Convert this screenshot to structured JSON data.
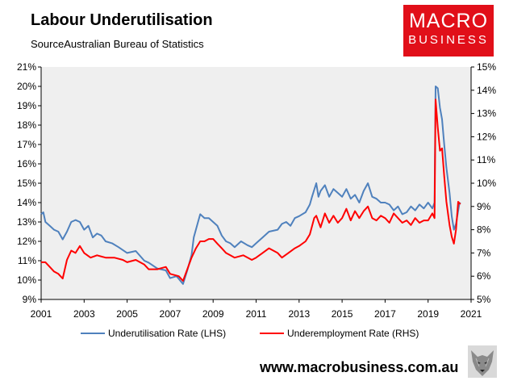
{
  "header": {
    "title": "Labour Underutilisation",
    "source": "SourceAustralian Bureau of Statistics"
  },
  "logo": {
    "line1": "MACRO",
    "line2": "BUSINESS",
    "color": "#e10f19"
  },
  "footer": {
    "site": "www.macrobusiness.com.au",
    "mascot_icon": "wolf-icon"
  },
  "chart_data": {
    "type": "line",
    "grid": false,
    "plot_background": "#efefef",
    "legend_position": "bottom",
    "x_axis": {
      "range": [
        2001,
        2021
      ],
      "ticks": [
        2001,
        2003,
        2005,
        2007,
        2009,
        2011,
        2013,
        2015,
        2017,
        2019,
        2021
      ]
    },
    "y_left": {
      "range": [
        9,
        21
      ],
      "unit": "%",
      "ticks": [
        9,
        10,
        11,
        12,
        13,
        14,
        15,
        16,
        17,
        18,
        19,
        20,
        21
      ]
    },
    "y_right": {
      "range": [
        5,
        15
      ],
      "unit": "%",
      "ticks": [
        5,
        6,
        7,
        8,
        9,
        10,
        11,
        12,
        13,
        14,
        15
      ]
    },
    "series": [
      {
        "name": "Underutilisation Rate (LHS)",
        "axis": "left",
        "color": "#4f81bd",
        "points": [
          [
            2001.0,
            13.4
          ],
          [
            2001.1,
            13.5
          ],
          [
            2001.2,
            13.0
          ],
          [
            2001.4,
            12.8
          ],
          [
            2001.6,
            12.6
          ],
          [
            2001.8,
            12.5
          ],
          [
            2001.9,
            12.3
          ],
          [
            2002.0,
            12.1
          ],
          [
            2002.2,
            12.5
          ],
          [
            2002.4,
            13.0
          ],
          [
            2002.6,
            13.1
          ],
          [
            2002.8,
            13.0
          ],
          [
            2003.0,
            12.6
          ],
          [
            2003.2,
            12.8
          ],
          [
            2003.4,
            12.2
          ],
          [
            2003.6,
            12.4
          ],
          [
            2003.8,
            12.3
          ],
          [
            2004.0,
            12.0
          ],
          [
            2004.3,
            11.9
          ],
          [
            2004.6,
            11.7
          ],
          [
            2005.0,
            11.4
          ],
          [
            2005.4,
            11.5
          ],
          [
            2005.8,
            11.0
          ],
          [
            2006.0,
            10.9
          ],
          [
            2006.4,
            10.6
          ],
          [
            2006.8,
            10.5
          ],
          [
            2007.0,
            10.1
          ],
          [
            2007.3,
            10.2
          ],
          [
            2007.6,
            9.8
          ],
          [
            2007.8,
            10.5
          ],
          [
            2008.0,
            11.3
          ],
          [
            2008.1,
            12.2
          ],
          [
            2008.3,
            13.0
          ],
          [
            2008.4,
            13.4
          ],
          [
            2008.6,
            13.2
          ],
          [
            2008.8,
            13.2
          ],
          [
            2009.0,
            13.0
          ],
          [
            2009.2,
            12.8
          ],
          [
            2009.4,
            12.3
          ],
          [
            2009.6,
            12.0
          ],
          [
            2009.8,
            11.9
          ],
          [
            2010.0,
            11.7
          ],
          [
            2010.3,
            12.0
          ],
          [
            2010.6,
            11.8
          ],
          [
            2010.8,
            11.7
          ],
          [
            2011.0,
            11.9
          ],
          [
            2011.3,
            12.2
          ],
          [
            2011.6,
            12.5
          ],
          [
            2012.0,
            12.6
          ],
          [
            2012.2,
            12.9
          ],
          [
            2012.4,
            13.0
          ],
          [
            2012.6,
            12.8
          ],
          [
            2012.8,
            13.2
          ],
          [
            2013.0,
            13.3
          ],
          [
            2013.3,
            13.5
          ],
          [
            2013.5,
            13.9
          ],
          [
            2013.6,
            14.3
          ],
          [
            2013.8,
            15.0
          ],
          [
            2013.9,
            14.3
          ],
          [
            2014.0,
            14.6
          ],
          [
            2014.2,
            14.9
          ],
          [
            2014.4,
            14.3
          ],
          [
            2014.6,
            14.7
          ],
          [
            2014.8,
            14.5
          ],
          [
            2015.0,
            14.3
          ],
          [
            2015.2,
            14.7
          ],
          [
            2015.4,
            14.2
          ],
          [
            2015.6,
            14.4
          ],
          [
            2015.8,
            14.0
          ],
          [
            2016.0,
            14.6
          ],
          [
            2016.2,
            15.0
          ],
          [
            2016.4,
            14.3
          ],
          [
            2016.6,
            14.2
          ],
          [
            2016.8,
            14.0
          ],
          [
            2017.0,
            14.0
          ],
          [
            2017.2,
            13.9
          ],
          [
            2017.4,
            13.6
          ],
          [
            2017.6,
            13.8
          ],
          [
            2017.8,
            13.4
          ],
          [
            2018.0,
            13.5
          ],
          [
            2018.2,
            13.8
          ],
          [
            2018.4,
            13.6
          ],
          [
            2018.6,
            13.9
          ],
          [
            2018.8,
            13.7
          ],
          [
            2019.0,
            14.0
          ],
          [
            2019.2,
            13.7
          ],
          [
            2019.3,
            14.0
          ],
          [
            2019.35,
            20.0
          ],
          [
            2019.45,
            19.9
          ],
          [
            2019.55,
            18.9
          ],
          [
            2019.65,
            18.3
          ],
          [
            2019.75,
            17.0
          ],
          [
            2019.85,
            15.8
          ],
          [
            2020.0,
            14.5
          ],
          [
            2020.1,
            13.3
          ],
          [
            2020.2,
            12.6
          ],
          [
            2020.3,
            12.9
          ],
          [
            2020.45,
            13.9
          ],
          [
            2020.5,
            14.0
          ]
        ]
      },
      {
        "name": "Underemployment Rate (RHS)",
        "axis": "right",
        "color": "#ff0000",
        "points": [
          [
            2001.0,
            6.6
          ],
          [
            2001.2,
            6.6
          ],
          [
            2001.4,
            6.4
          ],
          [
            2001.6,
            6.2
          ],
          [
            2001.8,
            6.1
          ],
          [
            2002.0,
            5.9
          ],
          [
            2002.2,
            6.7
          ],
          [
            2002.4,
            7.1
          ],
          [
            2002.6,
            7.0
          ],
          [
            2002.8,
            7.3
          ],
          [
            2003.0,
            7.0
          ],
          [
            2003.3,
            6.8
          ],
          [
            2003.6,
            6.9
          ],
          [
            2004.0,
            6.8
          ],
          [
            2004.4,
            6.8
          ],
          [
            2004.8,
            6.7
          ],
          [
            2005.0,
            6.6
          ],
          [
            2005.4,
            6.7
          ],
          [
            2005.8,
            6.5
          ],
          [
            2006.0,
            6.3
          ],
          [
            2006.4,
            6.3
          ],
          [
            2006.8,
            6.4
          ],
          [
            2007.0,
            6.1
          ],
          [
            2007.4,
            6.0
          ],
          [
            2007.6,
            5.8
          ],
          [
            2007.8,
            6.3
          ],
          [
            2008.0,
            6.8
          ],
          [
            2008.2,
            7.2
          ],
          [
            2008.4,
            7.5
          ],
          [
            2008.6,
            7.5
          ],
          [
            2008.8,
            7.6
          ],
          [
            2009.0,
            7.6
          ],
          [
            2009.2,
            7.4
          ],
          [
            2009.4,
            7.2
          ],
          [
            2009.6,
            7.0
          ],
          [
            2009.8,
            6.9
          ],
          [
            2010.0,
            6.8
          ],
          [
            2010.4,
            6.9
          ],
          [
            2010.8,
            6.7
          ],
          [
            2011.0,
            6.8
          ],
          [
            2011.3,
            7.0
          ],
          [
            2011.6,
            7.2
          ],
          [
            2012.0,
            7.0
          ],
          [
            2012.2,
            6.8
          ],
          [
            2012.5,
            7.0
          ],
          [
            2012.8,
            7.2
          ],
          [
            2013.0,
            7.3
          ],
          [
            2013.3,
            7.5
          ],
          [
            2013.5,
            7.8
          ],
          [
            2013.7,
            8.5
          ],
          [
            2013.8,
            8.6
          ],
          [
            2014.0,
            8.1
          ],
          [
            2014.2,
            8.7
          ],
          [
            2014.4,
            8.3
          ],
          [
            2014.6,
            8.6
          ],
          [
            2014.8,
            8.3
          ],
          [
            2015.0,
            8.5
          ],
          [
            2015.2,
            8.9
          ],
          [
            2015.4,
            8.4
          ],
          [
            2015.6,
            8.8
          ],
          [
            2015.8,
            8.5
          ],
          [
            2016.0,
            8.8
          ],
          [
            2016.2,
            9.0
          ],
          [
            2016.4,
            8.5
          ],
          [
            2016.6,
            8.4
          ],
          [
            2016.8,
            8.6
          ],
          [
            2017.0,
            8.5
          ],
          [
            2017.2,
            8.3
          ],
          [
            2017.4,
            8.7
          ],
          [
            2017.6,
            8.5
          ],
          [
            2017.8,
            8.3
          ],
          [
            2018.0,
            8.4
          ],
          [
            2018.2,
            8.2
          ],
          [
            2018.4,
            8.5
          ],
          [
            2018.6,
            8.3
          ],
          [
            2018.8,
            8.4
          ],
          [
            2019.0,
            8.4
          ],
          [
            2019.2,
            8.7
          ],
          [
            2019.3,
            8.5
          ],
          [
            2019.35,
            13.6
          ],
          [
            2019.45,
            12.4
          ],
          [
            2019.55,
            11.4
          ],
          [
            2019.65,
            11.5
          ],
          [
            2019.75,
            10.3
          ],
          [
            2019.85,
            9.2
          ],
          [
            2020.0,
            8.2
          ],
          [
            2020.1,
            7.7
          ],
          [
            2020.2,
            7.4
          ],
          [
            2020.3,
            8.0
          ],
          [
            2020.4,
            9.2
          ],
          [
            2020.5,
            9.1
          ]
        ]
      }
    ]
  }
}
